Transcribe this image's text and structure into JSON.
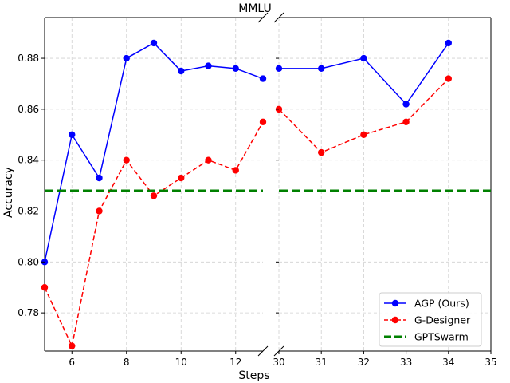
{
  "chart_data": {
    "type": "line",
    "title": "MMLU",
    "xlabel": "Steps",
    "ylabel": "Accuracy",
    "broken_x_axis": true,
    "left_panel": {
      "xlim": [
        5,
        13
      ],
      "xticks": [
        6,
        8,
        10,
        12
      ]
    },
    "right_panel": {
      "xlim": [
        30,
        35
      ],
      "xticks": [
        30,
        31,
        32,
        33,
        34,
        35
      ]
    },
    "ylim": [
      0.765,
      0.896
    ],
    "yticks": [
      0.78,
      0.8,
      0.82,
      0.84,
      0.86,
      0.88
    ],
    "ytick_labels": [
      "0.78",
      "0.80",
      "0.82",
      "0.84",
      "0.86",
      "0.88"
    ],
    "grid": true,
    "legend_position": "lower-right",
    "series": [
      {
        "name": "AGP (Ours)",
        "color": "#0000ff",
        "style": "solid-marker",
        "x": [
          5,
          6,
          7,
          8,
          9,
          10,
          11,
          12,
          13,
          30,
          31,
          32,
          33,
          34
        ],
        "y": [
          0.8,
          0.85,
          0.833,
          0.88,
          0.886,
          0.875,
          0.877,
          0.876,
          0.872,
          0.876,
          0.876,
          0.88,
          0.862,
          0.886
        ]
      },
      {
        "name": "G-Designer",
        "color": "#ff0000",
        "style": "dashed-marker",
        "x": [
          5,
          6,
          7,
          8,
          9,
          10,
          11,
          12,
          13,
          30,
          31,
          32,
          33,
          34
        ],
        "y": [
          0.79,
          0.767,
          0.82,
          0.84,
          0.826,
          0.833,
          0.84,
          0.836,
          0.855,
          0.86,
          0.843,
          0.85,
          0.855,
          0.872
        ]
      },
      {
        "name": "GPTSwarm",
        "color": "#008000",
        "style": "thick-dashed",
        "value": 0.828
      }
    ]
  }
}
